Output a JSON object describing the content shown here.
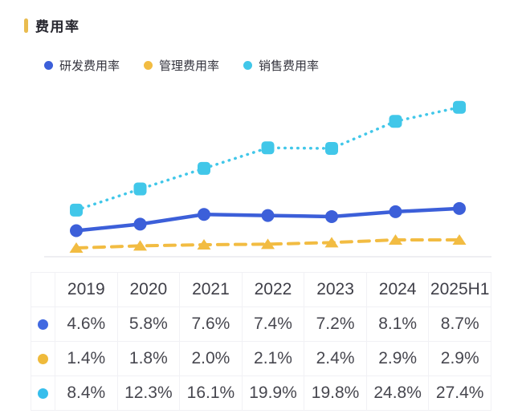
{
  "header": {
    "title": "费用率",
    "accent_color": "#e9bc4f"
  },
  "legend": [
    {
      "label": "研发费用率",
      "color": "#3c5fd9"
    },
    {
      "label": "管理费用率",
      "color": "#f2bc42"
    },
    {
      "label": "销售费用率",
      "color": "#41c7e9"
    }
  ],
  "chart_data": {
    "type": "line",
    "title": "费用率",
    "categories": [
      "2019",
      "2020",
      "2021",
      "2022",
      "2023",
      "2024",
      "2025H1"
    ],
    "series": [
      {
        "name": "销售费用率",
        "color": "#41c7e9",
        "line_style": "dotted",
        "marker": "square",
        "values": [
          8.4,
          12.3,
          16.1,
          19.9,
          19.8,
          24.8,
          27.4
        ]
      },
      {
        "name": "研发费用率",
        "color": "#3c5fd9",
        "line_style": "solid",
        "marker": "circle",
        "values": [
          4.6,
          5.8,
          7.6,
          7.4,
          7.2,
          8.1,
          8.7
        ]
      },
      {
        "name": "管理费用率",
        "color": "#f2bc42",
        "line_style": "dashed",
        "marker": "triangle",
        "values": [
          1.4,
          1.8,
          2.0,
          2.1,
          2.4,
          2.9,
          2.9
        ]
      }
    ],
    "xlabel": "",
    "ylabel": "",
    "ylim": [
      0,
      32.4
    ],
    "grid": false,
    "axis_line_color": "#e8e8ee",
    "legend_position": "top"
  },
  "table": {
    "columns": [
      "",
      "2019",
      "2020",
      "2021",
      "2022",
      "2023",
      "2024",
      "2025H1"
    ],
    "rows": [
      {
        "series": "研发费用率",
        "dot_color": "#4169e1",
        "values": [
          "4.6%",
          "5.8%",
          "7.6%",
          "7.4%",
          "7.2%",
          "8.1%",
          "8.7%"
        ]
      },
      {
        "series": "管理费用率",
        "dot_color": "#efba3b",
        "values": [
          "1.4%",
          "1.8%",
          "2.0%",
          "2.1%",
          "2.4%",
          "2.9%",
          "2.9%"
        ]
      },
      {
        "series": "销售费用率",
        "dot_color": "#36beec",
        "values": [
          "8.4%",
          "12.3%",
          "16.1%",
          "19.9%",
          "19.8%",
          "24.8%",
          "27.4%"
        ]
      }
    ]
  }
}
